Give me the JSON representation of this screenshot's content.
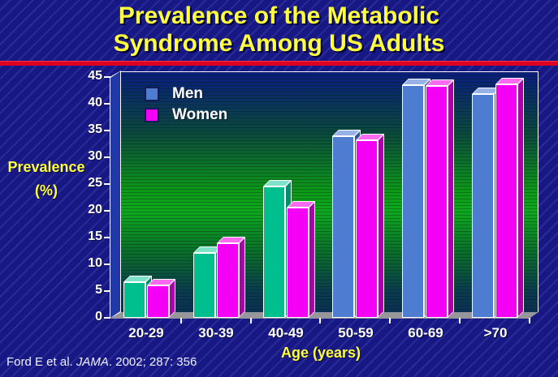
{
  "title": "Prevalence of the Metabolic Syndrome Among US Adults",
  "citation": {
    "pre": "Ford E et al. ",
    "journal": "JAMA",
    "post": ". 2002; 287: 356"
  },
  "chart_data": {
    "type": "bar",
    "title": "Prevalence of the Metabolic Syndrome Among US Adults",
    "categories": [
      "20-29",
      "30-39",
      "40-49",
      "50-59",
      "60-69",
      ">70"
    ],
    "series": [
      {
        "name": "Men",
        "values": [
          6.7,
          12.2,
          24.6,
          33.9,
          43.5,
          41.9
        ],
        "bar_styles": [
          "teal",
          "teal",
          "teal",
          "blue",
          "blue",
          "blue"
        ]
      },
      {
        "name": "Women",
        "values": [
          6.1,
          13.9,
          20.6,
          33.2,
          43.4,
          43.7
        ],
        "bar_styles": [
          "magenta",
          "magenta",
          "magenta",
          "magenta",
          "magenta",
          "magenta"
        ]
      }
    ],
    "xlabel": "Age (years)",
    "ylabel": "Prevalence (%)",
    "ylabel_lines": [
      "Prevalence",
      "(%)"
    ],
    "ylim": [
      0,
      45
    ],
    "yticks": [
      45,
      40,
      35,
      30,
      25,
      20,
      15,
      10,
      5,
      0
    ],
    "grid": false,
    "legend_position": "top-left"
  },
  "colors": {
    "slide_bg": "#181884",
    "title_text": "#ffff3c",
    "divider_red": "#dd0022",
    "axis_text": "#ffffff",
    "label_yellow": "#ffff3c",
    "plot_border": "#ffffff",
    "wall_blue": "#2038a8",
    "floor_gray": "#97979b",
    "plot_gradient_top": "#0a1d7d",
    "plot_gradient_mid_green": "#0ea81e",
    "plot_gradient_bottom": "#0b3152",
    "bar_palette": {
      "teal": {
        "front": "#00bf8f",
        "top": "#7fe3c9",
        "side": "#008f6b"
      },
      "blue": {
        "front": "#4d7cd0",
        "top": "#97b2e6",
        "side": "#32549c"
      },
      "magenta": {
        "front": "#f400f4",
        "top": "#fb6bf2",
        "side": "#ad00ad"
      }
    }
  }
}
